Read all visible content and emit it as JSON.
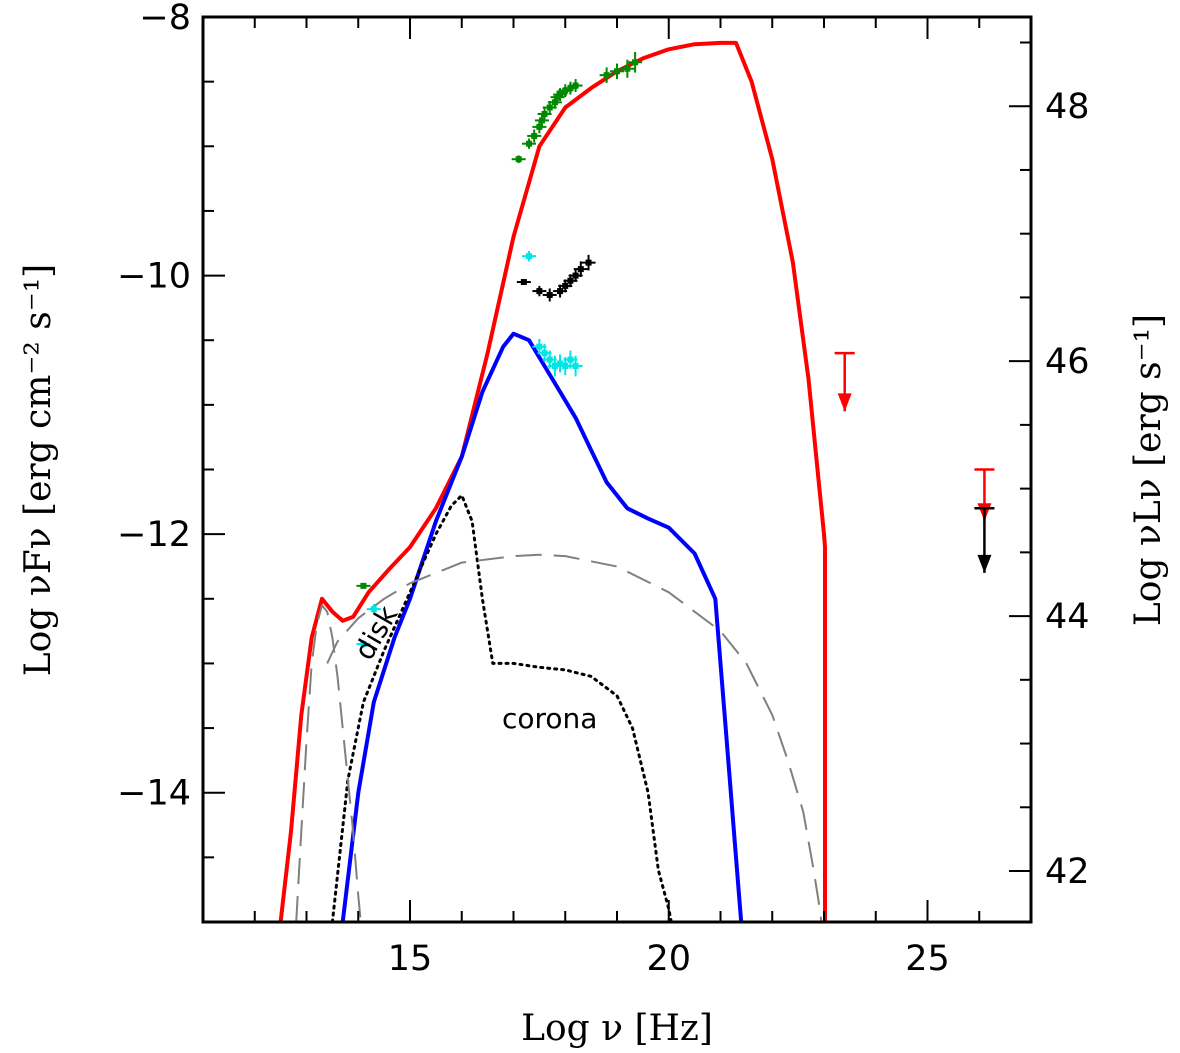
{
  "chart_data": {
    "type": "line",
    "title": "",
    "xlabel": "Log ν [Hz]",
    "ylabel": "Log νFν [erg cm⁻² s⁻¹]",
    "ylabel_right": "Log νLν [erg s⁻¹]",
    "xlim": [
      11,
      27
    ],
    "ylim": [
      -15,
      -8
    ],
    "ylim_right": [
      41.6,
      48.7
    ],
    "xticks": [
      15,
      20,
      25
    ],
    "yticks": [
      -14,
      -12,
      -10,
      -8
    ],
    "yticks_right": [
      42,
      44,
      46,
      48
    ],
    "xtick_labels": [
      "15",
      "20",
      "25"
    ],
    "ytick_labels": [
      "−14",
      "−12",
      "−10",
      "−8"
    ],
    "ytick_right_labels": [
      "42",
      "44",
      "46",
      "48"
    ],
    "grid": false,
    "annotations": [
      {
        "text": "disk",
        "x": 14.5,
        "y": -12.8,
        "rotation": -60
      },
      {
        "text": "corona",
        "x": 17.7,
        "y": -13.5,
        "rotation": 0
      }
    ],
    "colors": {
      "total": "#ff0000",
      "synchrotron_ssc": "#0000ff",
      "disk_corona": "#000000",
      "torus_host": "#808080",
      "data_green": "#008800",
      "data_cyan": "#00e5e5",
      "data_black": "#000000",
      "limit_red": "#ff0000",
      "limit_black": "#000000"
    },
    "series": [
      {
        "key": "total",
        "style": "solid",
        "x": [
          12.5,
          12.7,
          12.9,
          13.1,
          13.3,
          13.5,
          13.7,
          13.9,
          14.2,
          14.6,
          15.0,
          15.5,
          16.0,
          16.5,
          17.0,
          17.5,
          18.0,
          18.5,
          19.0,
          19.5,
          20.0,
          20.5,
          21.0,
          21.3,
          21.6,
          22.0,
          22.4,
          22.7,
          22.9,
          23.0,
          23.02,
          23.02
        ],
        "y": [
          -15.0,
          -14.3,
          -13.4,
          -12.8,
          -12.5,
          -12.6,
          -12.67,
          -12.64,
          -12.45,
          -12.27,
          -12.1,
          -11.8,
          -11.4,
          -10.6,
          -9.7,
          -9.0,
          -8.7,
          -8.55,
          -8.42,
          -8.32,
          -8.25,
          -8.21,
          -8.2,
          -8.2,
          -8.5,
          -9.1,
          -9.9,
          -10.8,
          -11.6,
          -12.0,
          -12.1,
          -15.0
        ]
      },
      {
        "key": "synchrotron_ssc",
        "style": "solid",
        "x": [
          13.7,
          14.0,
          14.3,
          14.7,
          15.0,
          15.5,
          16.0,
          16.4,
          16.8,
          17.0,
          17.3,
          17.6,
          17.9,
          18.2,
          18.5,
          18.8,
          19.2,
          19.6,
          20.0,
          20.5,
          20.9,
          21.1,
          21.3,
          21.4
        ],
        "y": [
          -15.0,
          -14.0,
          -13.3,
          -12.8,
          -12.5,
          -11.9,
          -11.4,
          -10.9,
          -10.55,
          -10.45,
          -10.5,
          -10.7,
          -10.9,
          -11.1,
          -11.35,
          -11.6,
          -11.8,
          -11.88,
          -11.95,
          -12.15,
          -12.5,
          -13.5,
          -14.5,
          -15.0
        ]
      },
      {
        "key": "disk_corona",
        "style": "dotted",
        "x": [
          13.5,
          13.8,
          14.1,
          14.5,
          15.0,
          15.5,
          15.8,
          16.0,
          16.2,
          16.4,
          16.6,
          17.0,
          17.5,
          18.0,
          18.5,
          19.0,
          19.3,
          19.6,
          19.8,
          20.0,
          20.05
        ],
        "y": [
          -15.0,
          -13.9,
          -13.3,
          -12.9,
          -12.45,
          -12.0,
          -11.78,
          -11.7,
          -11.9,
          -12.5,
          -13.0,
          -13.0,
          -13.03,
          -13.05,
          -13.1,
          -13.25,
          -13.5,
          -14.0,
          -14.6,
          -14.9,
          -15.0
        ]
      },
      {
        "key": "torus",
        "style": "dashed",
        "x": [
          12.8,
          12.9,
          13.0,
          13.1,
          13.2,
          13.3,
          13.4,
          13.5,
          13.6,
          13.7,
          13.8,
          13.9,
          14.0,
          14.05
        ],
        "y": [
          -15.0,
          -14.3,
          -13.6,
          -13.0,
          -12.7,
          -12.55,
          -12.6,
          -12.8,
          -13.1,
          -13.5,
          -13.9,
          -14.3,
          -14.8,
          -15.0
        ]
      },
      {
        "key": "host",
        "style": "dashed",
        "x": [
          13.4,
          13.6,
          14.0,
          14.5,
          15.0,
          16.0,
          17.0,
          17.5,
          18.0,
          19.0,
          20.0,
          21.0,
          21.5,
          22.0,
          22.3,
          22.6,
          22.8,
          22.9,
          22.95,
          22.95
        ],
        "y": [
          -13.0,
          -12.83,
          -12.65,
          -12.5,
          -12.38,
          -12.22,
          -12.17,
          -12.16,
          -12.17,
          -12.25,
          -12.45,
          -12.75,
          -13.0,
          -13.4,
          -13.75,
          -14.15,
          -14.6,
          -14.85,
          -15.0,
          -15.0
        ]
      }
    ],
    "data_points": [
      {
        "key": "green",
        "x": [
          17.1,
          17.3,
          17.4,
          17.5,
          17.55,
          17.6,
          17.7,
          17.8,
          17.85,
          17.9,
          18.0,
          18.1,
          18.2,
          18.8,
          19.0,
          19.2,
          19.35,
          14.1
        ],
        "y": [
          -9.1,
          -8.98,
          -8.92,
          -8.85,
          -8.8,
          -8.75,
          -8.7,
          -8.66,
          -8.62,
          -8.6,
          -8.57,
          -8.55,
          -8.53,
          -8.45,
          -8.42,
          -8.4,
          -8.35,
          -12.4
        ],
        "yerr": [
          0.03,
          0.04,
          0.05,
          0.05,
          0.05,
          0.05,
          0.05,
          0.05,
          0.05,
          0.05,
          0.05,
          0.05,
          0.05,
          0.06,
          0.06,
          0.07,
          0.08,
          0.02
        ]
      },
      {
        "key": "cyan",
        "x": [
          17.3,
          17.5,
          17.6,
          17.7,
          17.8,
          17.9,
          18.0,
          18.1,
          18.2,
          14.1,
          14.3
        ],
        "y": [
          -9.85,
          -10.55,
          -10.6,
          -10.65,
          -10.7,
          -10.68,
          -10.7,
          -10.65,
          -10.7,
          -12.85,
          -12.58
        ],
        "yerr": [
          0.04,
          0.06,
          0.07,
          0.07,
          0.08,
          0.07,
          0.07,
          0.07,
          0.08,
          0.03,
          0.04
        ]
      },
      {
        "key": "black",
        "x": [
          17.2,
          17.5,
          17.7,
          17.9,
          18.0,
          18.1,
          18.2,
          18.3,
          18.45
        ],
        "y": [
          -10.05,
          -10.12,
          -10.15,
          -10.12,
          -10.08,
          -10.04,
          -10.0,
          -9.95,
          -9.9
        ],
        "yerr": [
          0.02,
          0.04,
          0.05,
          0.05,
          0.05,
          0.05,
          0.05,
          0.06,
          0.06
        ]
      }
    ],
    "upper_limits": [
      {
        "key": "limit_red",
        "x": 23.4,
        "y": -10.6,
        "tip": -11.05
      },
      {
        "key": "limit_red",
        "x": 26.1,
        "y": -11.5,
        "tip": -11.9
      },
      {
        "key": "limit_black",
        "x": 26.1,
        "y": -11.8,
        "tip": -12.3
      }
    ]
  }
}
